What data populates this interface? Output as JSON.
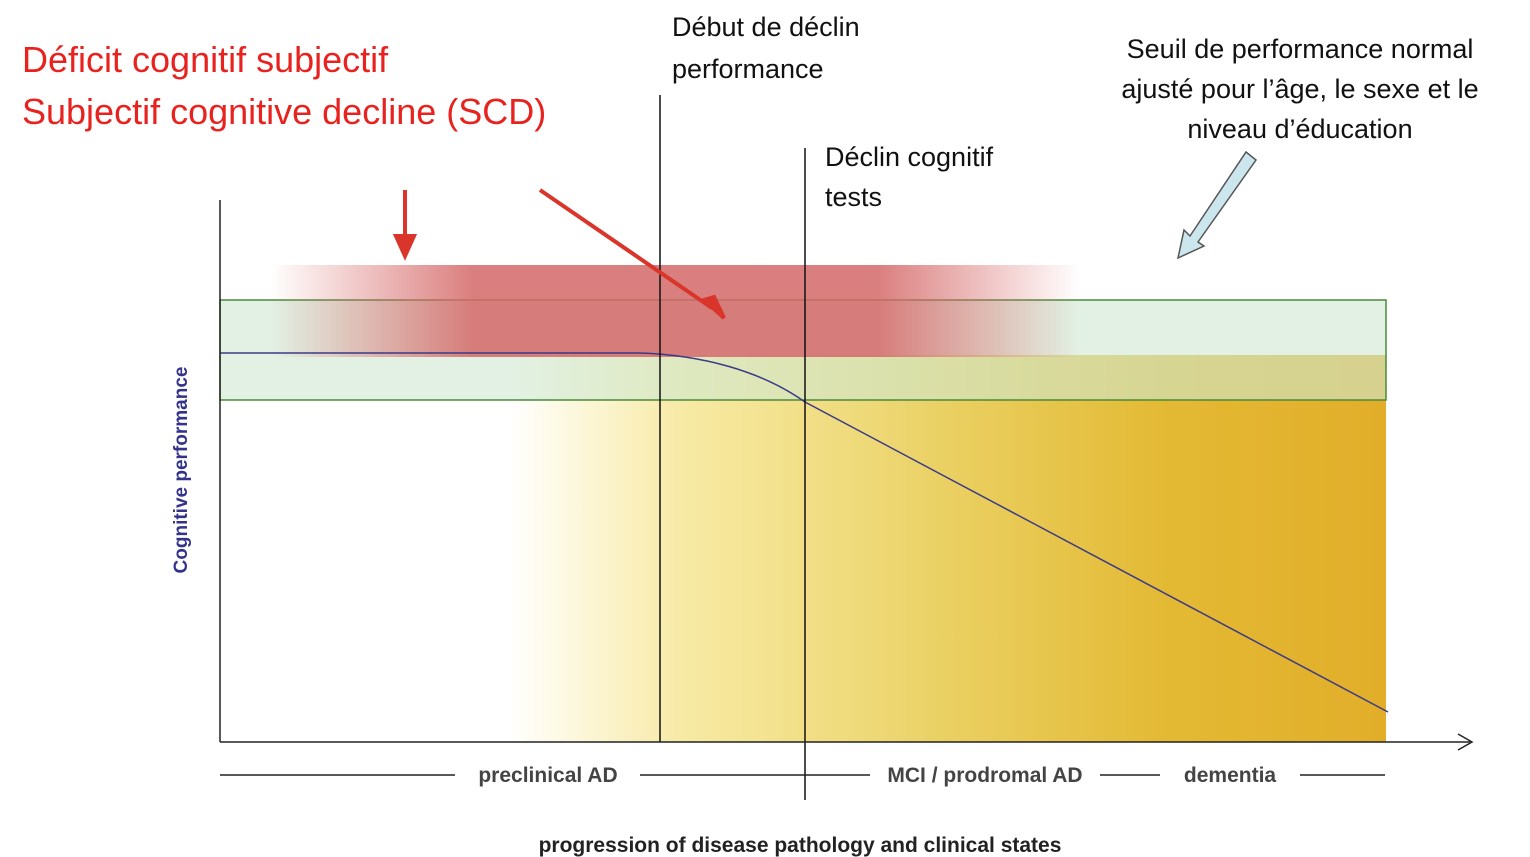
{
  "title_lines": [
    "Déficit cognitif subjectif",
    "Subjectif cognitive decline (SCD)"
  ],
  "annotations": {
    "decline_onset": [
      "Début de déclin",
      "performance"
    ],
    "cognitive_decline": [
      "Déclin cognitif",
      "tests"
    ],
    "threshold": [
      "Seuil de performance normal",
      "ajusté pour l’âge, le sexe et le",
      "niveau d’éducation"
    ]
  },
  "y_axis_label": "Cognitive performance",
  "x_axis_label": "progression of disease pathology and clinical states",
  "stages": [
    "preclinical AD",
    "MCI / prodromal AD",
    "dementia"
  ]
}
